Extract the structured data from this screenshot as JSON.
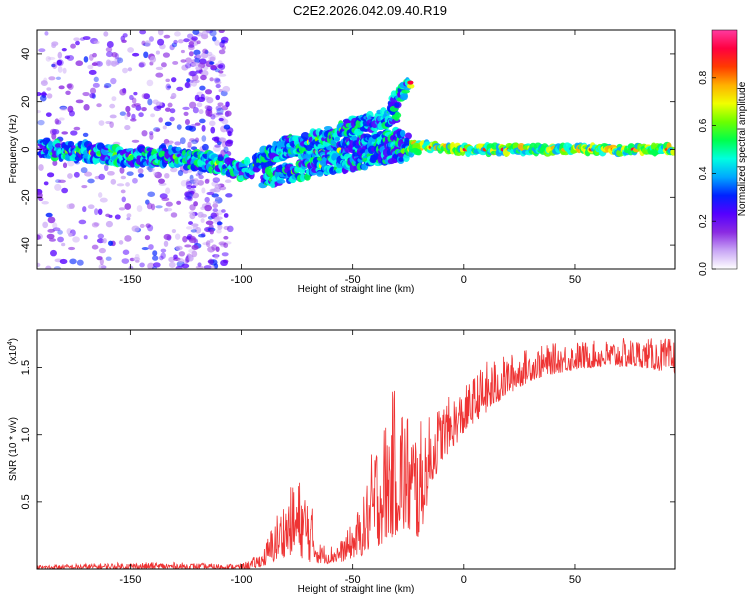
{
  "title": "C2E2.2026.042.09.40.R19",
  "chart_data": [
    {
      "type": "heatmap",
      "title": "C2E2.2026.042.09.40.R19",
      "xlabel": "Height of straight line (km)",
      "ylabel": "Frequency (Hz)",
      "xlim": [
        -192,
        95
      ],
      "ylim": [
        -50,
        50
      ],
      "xticks": [
        -150,
        -100,
        -50,
        0,
        50
      ],
      "yticks": [
        -40,
        -20,
        0,
        20,
        40
      ],
      "colorbar": {
        "label": "Normalized spectral amplitude",
        "range": [
          0,
          1
        ],
        "ticks": [
          0.0,
          0.2,
          0.4,
          0.6,
          0.8
        ],
        "tick_labels": [
          "0.0",
          "0.2",
          "0.4",
          "0.6",
          "0.8"
        ],
        "colors": [
          "#ffffff",
          "#c9a6f5",
          "#8b2be2",
          "#5500ff",
          "#0022ff",
          "#00a8ff",
          "#00ffe0",
          "#00ff4c",
          "#6cff00",
          "#f0ff00",
          "#ffb000",
          "#ff3b00",
          "#ff0040",
          "#ff3aa0"
        ]
      },
      "ridges": [
        {
          "name": "main",
          "points": [
            [
              -190,
              0
            ],
            [
              -170,
              -1
            ],
            [
              -150,
              -3
            ],
            [
              -130,
              -3
            ],
            [
              -110,
              -6
            ],
            [
              -100,
              -9
            ],
            [
              -90,
              -5
            ],
            [
              -80,
              2
            ],
            [
              -70,
              0
            ],
            [
              -60,
              -2
            ],
            [
              -50,
              2
            ],
            [
              -40,
              3
            ],
            [
              -30,
              5
            ],
            [
              -25,
              2
            ],
            [
              -15,
              1
            ],
            [
              0,
              0
            ],
            [
              20,
              0
            ],
            [
              40,
              0
            ],
            [
              95,
              0
            ]
          ]
        },
        {
          "name": "upper",
          "points": [
            [
              -90,
              -3
            ],
            [
              -80,
              0
            ],
            [
              -70,
              3
            ],
            [
              -60,
              6
            ],
            [
              -50,
              10
            ],
            [
              -40,
              12
            ],
            [
              -30,
              14
            ]
          ]
        },
        {
          "name": "lower",
          "points": [
            [
              -90,
              -12
            ],
            [
              -80,
              -10
            ],
            [
              -70,
              -8
            ],
            [
              -60,
              -6
            ],
            [
              -50,
              -5
            ],
            [
              -40,
              -3
            ],
            [
              -30,
              -1
            ],
            [
              -20,
              0
            ]
          ]
        },
        {
          "name": "branch",
          "points": [
            [
              -33,
              18
            ],
            [
              -28,
              24
            ],
            [
              -24,
              28
            ]
          ]
        }
      ]
    },
    {
      "type": "line",
      "xlabel": "Height of straight line (km)",
      "ylabel": "SNR (10 * v/v)",
      "yscale_label": "(x10",
      "yscale_exp": "4",
      "yscale_close": ")",
      "xlim": [
        -192,
        95
      ],
      "ylim": [
        0,
        1.78
      ],
      "xticks": [
        -150,
        -100,
        -50,
        0,
        50
      ],
      "yticks": [
        0.5,
        1.0,
        1.5
      ],
      "ytick_labels": [
        "0.5",
        "1.0",
        "1.5"
      ],
      "color": "#ee3333",
      "series": [
        {
          "name": "SNR",
          "x": [
            -192,
            -170,
            -150,
            -130,
            -110,
            -100,
            -95,
            -90,
            -85,
            -80,
            -75,
            -70,
            -65,
            -60,
            -55,
            -50,
            -45,
            -40,
            -35,
            -30,
            -25,
            -20,
            -15,
            -10,
            -5,
            0,
            5,
            10,
            20,
            30,
            40,
            50,
            60,
            70,
            80,
            95
          ],
          "lo": [
            0.0,
            0.0,
            0.0,
            0.0,
            0.0,
            0.0,
            0.0,
            0.02,
            0.05,
            0.1,
            0.1,
            0.05,
            0.04,
            0.04,
            0.05,
            0.08,
            0.1,
            0.15,
            0.2,
            0.25,
            0.25,
            0.2,
            0.6,
            0.8,
            0.9,
            1.0,
            1.1,
            1.15,
            1.3,
            1.4,
            1.45,
            1.48,
            1.5,
            1.5,
            1.5,
            1.45
          ],
          "hi": [
            0.03,
            0.04,
            0.05,
            0.05,
            0.04,
            0.04,
            0.08,
            0.15,
            0.4,
            0.55,
            0.7,
            0.62,
            0.2,
            0.18,
            0.22,
            0.35,
            0.55,
            1.0,
            1.15,
            1.45,
            1.2,
            1.1,
            1.15,
            1.25,
            1.3,
            1.35,
            1.45,
            1.55,
            1.6,
            1.65,
            1.68,
            1.7,
            1.7,
            1.72,
            1.72,
            1.72
          ]
        }
      ]
    }
  ]
}
